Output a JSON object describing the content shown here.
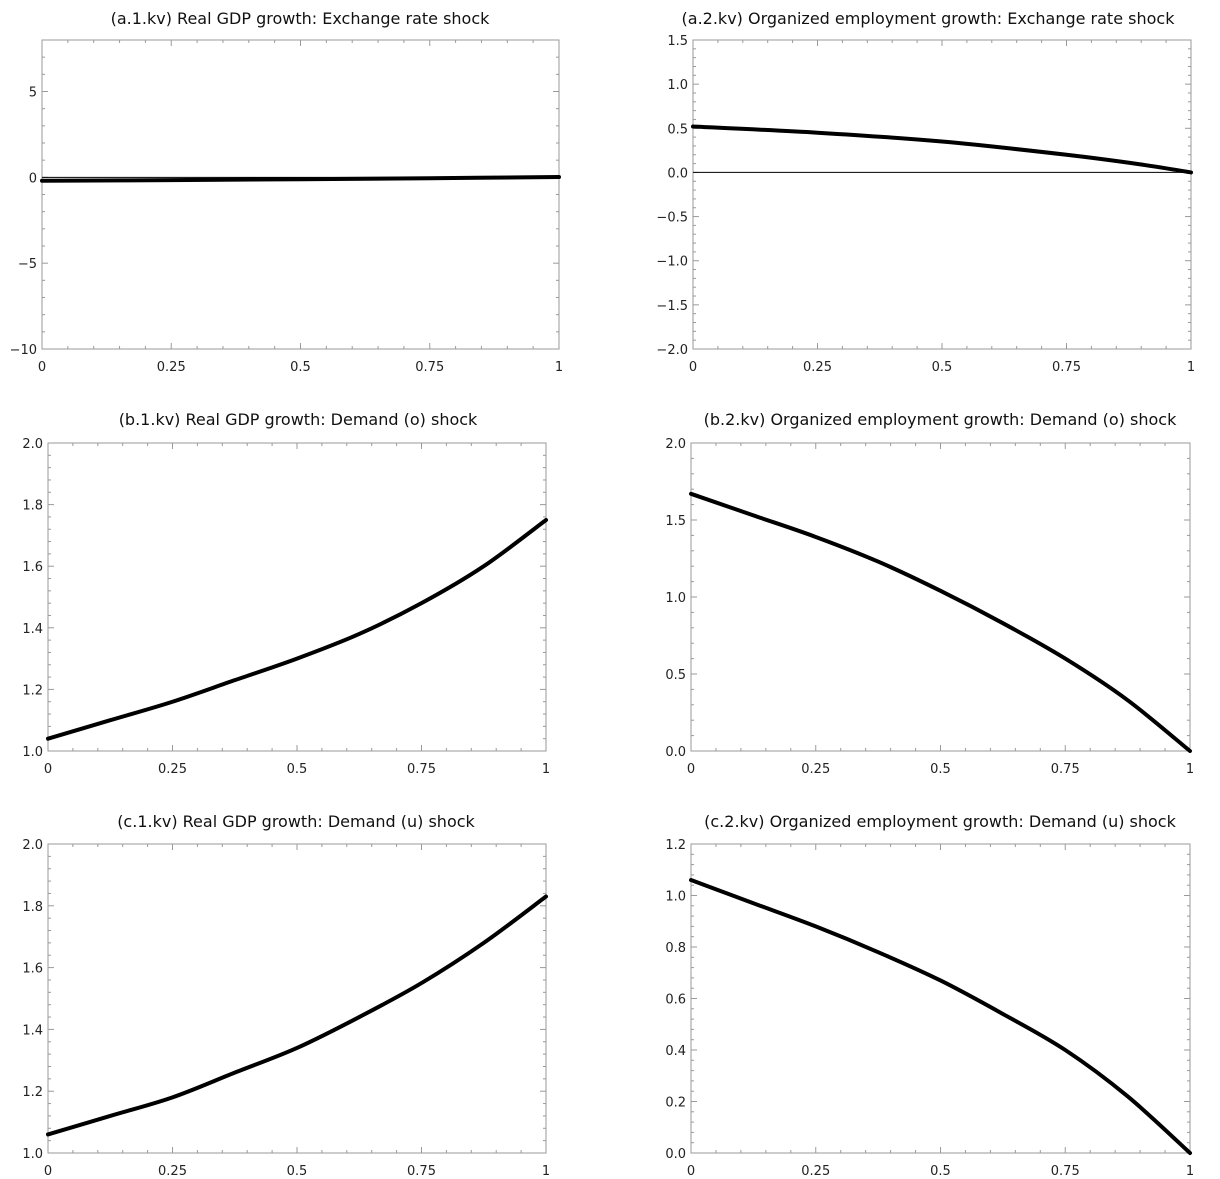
{
  "chart_data": [
    {
      "type": "line",
      "title": "(a.1.kv) Real GDP growth: Exchange rate shock",
      "xlim": [
        0,
        1
      ],
      "ylim": [
        -10,
        8
      ],
      "x_ticks": [
        "0",
        "0.25",
        "0.5",
        "0.75",
        "1"
      ],
      "y_ticks": [
        {
          "value": -10,
          "label": "−10"
        },
        {
          "value": -5,
          "label": "−5"
        },
        {
          "value": 0,
          "label": "0"
        },
        {
          "value": 5,
          "label": "5"
        }
      ],
      "zero_line": true,
      "series": [
        {
          "x": [
            0,
            0.25,
            0.5,
            0.75,
            1
          ],
          "y": [
            -0.2,
            -0.16,
            -0.11,
            -0.05,
            0.02
          ]
        }
      ]
    },
    {
      "type": "line",
      "title": "(a.2.kv) Organized employment growth: Exchange rate shock",
      "xlim": [
        0,
        1
      ],
      "ylim": [
        -2.0,
        1.5
      ],
      "x_ticks": [
        "0",
        "0.25",
        "0.5",
        "0.75",
        "1"
      ],
      "y_ticks": [
        {
          "value": -2.0,
          "label": "−2.0"
        },
        {
          "value": -1.5,
          "label": "−1.5"
        },
        {
          "value": -1.0,
          "label": "−1.0"
        },
        {
          "value": -0.5,
          "label": "−0.5"
        },
        {
          "value": 0.0,
          "label": "0.0"
        },
        {
          "value": 0.5,
          "label": "0.5"
        },
        {
          "value": 1.0,
          "label": "1.0"
        },
        {
          "value": 1.5,
          "label": "1.5"
        }
      ],
      "zero_line": true,
      "series": [
        {
          "x": [
            0,
            0.25,
            0.5,
            0.75,
            0.9,
            1
          ],
          "y": [
            0.52,
            0.45,
            0.35,
            0.2,
            0.09,
            0.0
          ]
        }
      ]
    },
    {
      "type": "line",
      "title": "(b.1.kv) Real GDP growth: Demand (o) shock",
      "xlim": [
        0,
        1
      ],
      "ylim": [
        1.0,
        2.0
      ],
      "x_ticks": [
        "0",
        "0.25",
        "0.5",
        "0.75",
        "1"
      ],
      "y_ticks": [
        {
          "value": 1.0,
          "label": "1.0"
        },
        {
          "value": 1.2,
          "label": "1.2"
        },
        {
          "value": 1.4,
          "label": "1.4"
        },
        {
          "value": 1.6,
          "label": "1.6"
        },
        {
          "value": 1.8,
          "label": "1.8"
        },
        {
          "value": 2.0,
          "label": "2.0"
        }
      ],
      "zero_line": false,
      "series": [
        {
          "x": [
            0,
            0.125,
            0.25,
            0.375,
            0.5,
            0.625,
            0.75,
            0.875,
            1
          ],
          "y": [
            1.04,
            1.1,
            1.16,
            1.23,
            1.3,
            1.38,
            1.48,
            1.6,
            1.75
          ]
        }
      ]
    },
    {
      "type": "line",
      "title": "(b.2.kv) Organized employment growth: Demand (o) shock",
      "xlim": [
        0,
        1
      ],
      "ylim": [
        0.0,
        2.0
      ],
      "x_ticks": [
        "0",
        "0.25",
        "0.5",
        "0.75",
        "1"
      ],
      "y_ticks": [
        {
          "value": 0.0,
          "label": "0.0"
        },
        {
          "value": 0.5,
          "label": "0.5"
        },
        {
          "value": 1.0,
          "label": "1.0"
        },
        {
          "value": 1.5,
          "label": "1.5"
        },
        {
          "value": 2.0,
          "label": "2.0"
        }
      ],
      "zero_line": false,
      "series": [
        {
          "x": [
            0,
            0.125,
            0.25,
            0.375,
            0.5,
            0.625,
            0.75,
            0.875,
            1
          ],
          "y": [
            1.67,
            1.53,
            1.39,
            1.23,
            1.04,
            0.83,
            0.6,
            0.33,
            0.0
          ]
        }
      ]
    },
    {
      "type": "line",
      "title": "(c.1.kv) Real GDP growth: Demand (u) shock",
      "xlim": [
        0,
        1
      ],
      "ylim": [
        1.0,
        2.0
      ],
      "x_ticks": [
        "0",
        "0.25",
        "0.5",
        "0.75",
        "1"
      ],
      "y_ticks": [
        {
          "value": 1.0,
          "label": "1.0"
        },
        {
          "value": 1.2,
          "label": "1.2"
        },
        {
          "value": 1.4,
          "label": "1.4"
        },
        {
          "value": 1.6,
          "label": "1.6"
        },
        {
          "value": 1.8,
          "label": "1.8"
        },
        {
          "value": 2.0,
          "label": "2.0"
        }
      ],
      "zero_line": false,
      "series": [
        {
          "x": [
            0,
            0.125,
            0.25,
            0.375,
            0.5,
            0.625,
            0.75,
            0.875,
            1
          ],
          "y": [
            1.06,
            1.12,
            1.18,
            1.26,
            1.34,
            1.44,
            1.55,
            1.68,
            1.83
          ]
        }
      ]
    },
    {
      "type": "line",
      "title": "(c.2.kv) Organized employment growth: Demand (u) shock",
      "xlim": [
        0,
        1
      ],
      "ylim": [
        0.0,
        1.2
      ],
      "x_ticks": [
        "0",
        "0.25",
        "0.5",
        "0.75",
        "1"
      ],
      "y_ticks": [
        {
          "value": 0.0,
          "label": "0.0"
        },
        {
          "value": 0.2,
          "label": "0.2"
        },
        {
          "value": 0.4,
          "label": "0.4"
        },
        {
          "value": 0.6,
          "label": "0.6"
        },
        {
          "value": 0.8,
          "label": "0.8"
        },
        {
          "value": 1.0,
          "label": "1.0"
        },
        {
          "value": 1.2,
          "label": "1.2"
        }
      ],
      "zero_line": false,
      "series": [
        {
          "x": [
            0,
            0.125,
            0.25,
            0.375,
            0.5,
            0.625,
            0.75,
            0.875,
            1
          ],
          "y": [
            1.06,
            0.97,
            0.88,
            0.78,
            0.67,
            0.54,
            0.4,
            0.22,
            0.0
          ]
        }
      ]
    }
  ]
}
